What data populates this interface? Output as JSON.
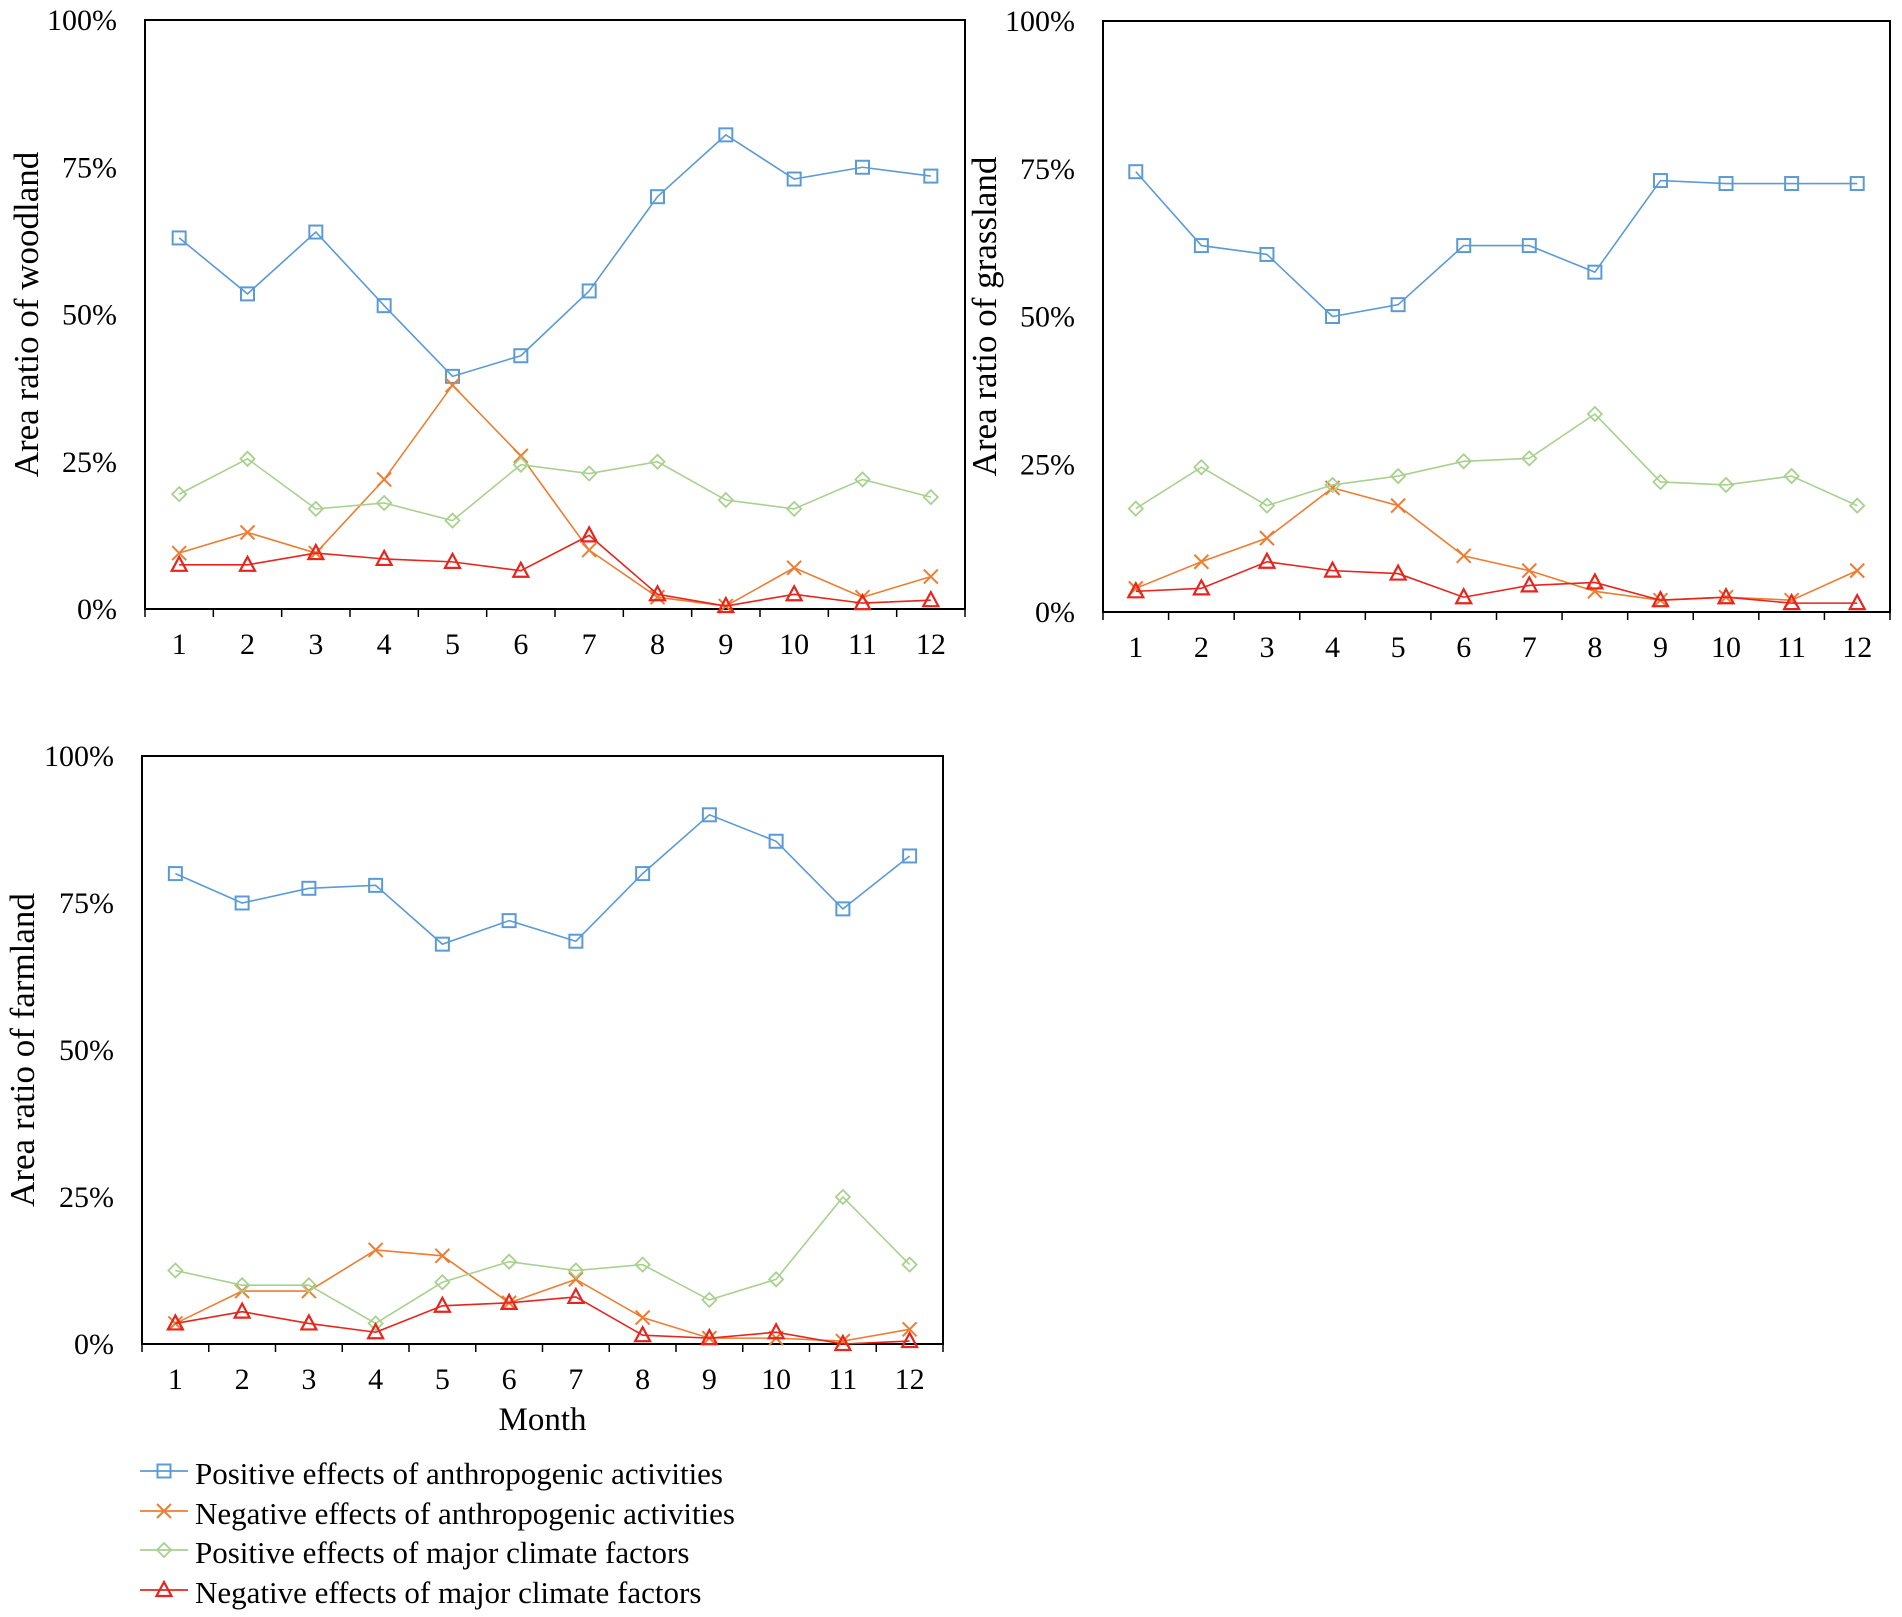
{
  "chart_data": [
    {
      "type": "line",
      "id": "woodland",
      "ylabel": "Area ratio of woodland",
      "xlabel": "",
      "ylim": [
        0,
        100
      ],
      "yticks": [
        "0%",
        "25%",
        "50%",
        "75%",
        "100%"
      ],
      "categories": [
        "1",
        "2",
        "3",
        "4",
        "5",
        "6",
        "7",
        "8",
        "9",
        "10",
        "11",
        "12"
      ],
      "series": [
        {
          "name": "Positive effects of anthropogenic activities",
          "values": [
            63,
            53.5,
            64,
            51.5,
            39.5,
            43,
            54,
            70,
            80.5,
            73,
            75,
            73.5
          ]
        },
        {
          "name": "Negative effects of anthropogenic activities",
          "values": [
            9.5,
            13,
            9.5,
            22,
            38,
            26,
            10,
            2,
            0.5,
            7,
            2,
            5.5
          ]
        },
        {
          "name": "Positive effects of major climate factors",
          "values": [
            19.5,
            25.5,
            17,
            18,
            15,
            24.5,
            23,
            25,
            18.5,
            17,
            22,
            19
          ]
        },
        {
          "name": "Negative effects of major climate factors",
          "values": [
            7.5,
            7.5,
            9.5,
            8.5,
            8,
            6.5,
            12.5,
            2.5,
            0.5,
            2.5,
            1,
            1.5
          ]
        }
      ]
    },
    {
      "type": "line",
      "id": "grassland",
      "ylabel": "Area ratio  of grassland",
      "xlabel": "",
      "ylim": [
        0,
        100
      ],
      "yticks": [
        "0%",
        "25%",
        "50%",
        "75%",
        "100%"
      ],
      "categories": [
        "1",
        "2",
        "3",
        "4",
        "5",
        "6",
        "7",
        "8",
        "9",
        "10",
        "11",
        "12"
      ],
      "series": [
        {
          "name": "Positive effects of anthropogenic activities",
          "values": [
            74.5,
            62,
            60.5,
            50,
            52,
            62,
            62,
            57.5,
            73,
            72.5,
            72.5,
            72.5
          ]
        },
        {
          "name": "Negative effects of anthropogenic activities",
          "values": [
            4,
            8.5,
            12.5,
            21,
            18,
            9.5,
            7,
            3.5,
            2,
            2.5,
            2,
            7
          ]
        },
        {
          "name": "Positive effects of major climate factors",
          "values": [
            17.5,
            24.5,
            18,
            21.5,
            23,
            25.5,
            26,
            33.5,
            22,
            21.5,
            23,
            18
          ]
        },
        {
          "name": "Negative effects of major climate factors",
          "values": [
            3.5,
            4,
            8.5,
            7,
            6.5,
            2.5,
            4.5,
            5,
            2,
            2.5,
            1.5,
            1.5
          ]
        }
      ]
    },
    {
      "type": "line",
      "id": "farmland",
      "ylabel": "Area ratio of farmland",
      "xlabel": "Month",
      "ylim": [
        0,
        100
      ],
      "yticks": [
        "0%",
        "25%",
        "50%",
        "75%",
        "100%"
      ],
      "categories": [
        "1",
        "2",
        "3",
        "4",
        "5",
        "6",
        "7",
        "8",
        "9",
        "10",
        "11",
        "12"
      ],
      "series": [
        {
          "name": "Positive effects of anthropogenic activities",
          "values": [
            80,
            75,
            77.5,
            78,
            68,
            72,
            68.5,
            80,
            90,
            85.5,
            74,
            83
          ]
        },
        {
          "name": "Negative effects of anthropogenic activities",
          "values": [
            3.5,
            9,
            9,
            16,
            15,
            7,
            11,
            4.5,
            1,
            1,
            0.5,
            2.5
          ]
        },
        {
          "name": "Positive effects of major climate factors",
          "values": [
            12.5,
            10,
            10,
            3.5,
            10.5,
            14,
            12.5,
            13.5,
            7.5,
            11,
            25,
            13.5
          ]
        },
        {
          "name": "Negative effects of major climate factors",
          "values": [
            3.5,
            5.5,
            3.5,
            2,
            6.5,
            7,
            8,
            1.5,
            1,
            2,
            0,
            0.5
          ]
        }
      ]
    }
  ],
  "legend": {
    "placement": "bottom-left",
    "items": [
      {
        "label": "Positive effects of anthropogenic activities",
        "color": "#5b9bd5",
        "marker": "square"
      },
      {
        "label": "Negative effects of anthropogenic activities",
        "color": "#ed7d31",
        "marker": "cross"
      },
      {
        "label": "Positive effects of major climate factors",
        "color": "#a9d18e",
        "marker": "diamond"
      },
      {
        "label": "Negative effects of major climate factors",
        "color": "#e8241c",
        "marker": "triangle"
      }
    ]
  }
}
